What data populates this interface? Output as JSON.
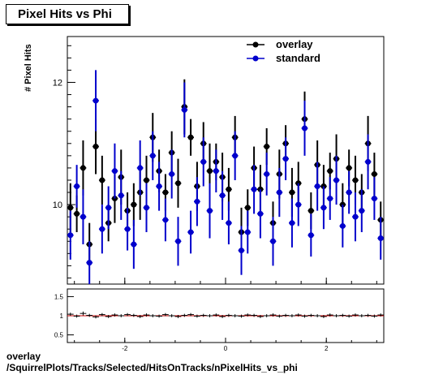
{
  "title": "Pixel Hits vs Phi",
  "footer": {
    "line1": "overlay",
    "line2": "/SquirrelPlots/Tracks/Selected/HitsOnTracks/nPixelHits_vs_phi"
  },
  "chart_data": [
    {
      "type": "scatter",
      "title": "Pixel Hits vs Phi",
      "ylabel": "# Pixel Hits",
      "xlabel": "",
      "xlim": [
        -3.14,
        3.14
      ],
      "ylim": [
        8.7,
        12.75
      ],
      "yticks": [
        10,
        12
      ],
      "xticks": [
        -2,
        0,
        2
      ],
      "legend": {
        "position": "top-right",
        "entries": [
          "overlay",
          "standard"
        ]
      },
      "colors": {
        "overlay": "#000000",
        "standard": "#0000cc"
      },
      "series": [
        {
          "name": "overlay",
          "x": [
            -3.079,
            -2.953,
            -2.827,
            -2.702,
            -2.576,
            -2.45,
            -2.324,
            -2.199,
            -2.073,
            -1.947,
            -1.822,
            -1.696,
            -1.57,
            -1.445,
            -1.319,
            -1.193,
            -1.068,
            -0.942,
            -0.816,
            -0.691,
            -0.565,
            -0.439,
            -0.314,
            -0.188,
            -0.063,
            0.063,
            0.188,
            0.314,
            0.439,
            0.565,
            0.691,
            0.816,
            0.942,
            1.068,
            1.193,
            1.319,
            1.445,
            1.57,
            1.696,
            1.822,
            1.947,
            2.073,
            2.199,
            2.324,
            2.45,
            2.576,
            2.702,
            2.827,
            2.953,
            3.079
          ],
          "y": [
            9.95,
            9.85,
            10.6,
            9.35,
            10.95,
            10.4,
            9.7,
            10.1,
            10.45,
            9.9,
            10.0,
            10.2,
            10.4,
            11.1,
            10.55,
            10.2,
            10.85,
            10.35,
            11.6,
            11.1,
            10.3,
            11.0,
            10.55,
            10.7,
            10.45,
            10.25,
            11.1,
            9.55,
            9.95,
            10.6,
            10.25,
            10.95,
            9.7,
            10.5,
            11.0,
            10.2,
            10.35,
            11.4,
            9.9,
            10.65,
            10.3,
            10.55,
            10.75,
            10.0,
            10.6,
            10.4,
            10.2,
            11.0,
            10.5,
            9.75
          ],
          "yerr": [
            0.4,
            0.3,
            0.45,
            0.35,
            0.45,
            0.4,
            0.3,
            0.4,
            0.45,
            0.3,
            0.35,
            0.45,
            0.4,
            0.4,
            0.35,
            0.3,
            0.35,
            0.4,
            0.45,
            0.3,
            0.4,
            0.35,
            0.45,
            0.3,
            0.4,
            0.35,
            0.35,
            0.4,
            0.3,
            0.35,
            0.4,
            0.3,
            0.35,
            0.4,
            0.3,
            0.4,
            0.35,
            0.45,
            0.3,
            0.4,
            0.35,
            0.3,
            0.4,
            0.35,
            0.3,
            0.4,
            0.3,
            0.45,
            0.35,
            0.3
          ]
        },
        {
          "name": "standard",
          "x": [
            -3.079,
            -2.953,
            -2.827,
            -2.702,
            -2.576,
            -2.45,
            -2.324,
            -2.199,
            -2.073,
            -1.947,
            -1.822,
            -1.696,
            -1.57,
            -1.445,
            -1.319,
            -1.193,
            -1.068,
            -0.942,
            -0.816,
            -0.691,
            -0.565,
            -0.439,
            -0.314,
            -0.188,
            -0.063,
            0.063,
            0.188,
            0.314,
            0.439,
            0.565,
            0.691,
            0.816,
            0.942,
            1.068,
            1.193,
            1.319,
            1.445,
            1.57,
            1.696,
            1.822,
            1.947,
            2.073,
            2.199,
            2.324,
            2.45,
            2.576,
            2.702,
            2.827,
            2.953,
            3.079
          ],
          "y": [
            9.5,
            10.3,
            9.8,
            9.05,
            11.7,
            9.6,
            9.95,
            10.55,
            10.15,
            9.6,
            9.35,
            10.6,
            9.95,
            10.8,
            10.3,
            9.75,
            10.5,
            9.4,
            11.55,
            9.55,
            10.05,
            10.7,
            9.9,
            10.55,
            10.15,
            9.7,
            10.8,
            9.25,
            9.55,
            10.25,
            9.85,
            10.5,
            9.4,
            10.2,
            10.75,
            9.7,
            10.0,
            11.25,
            9.5,
            10.3,
            9.95,
            10.1,
            10.4,
            9.65,
            10.2,
            9.8,
            9.9,
            10.7,
            10.1,
            9.45
          ],
          "yerr": [
            0.4,
            0.35,
            0.45,
            0.35,
            0.5,
            0.4,
            0.35,
            0.45,
            0.4,
            0.35,
            0.4,
            0.45,
            0.4,
            0.4,
            0.4,
            0.35,
            0.4,
            0.4,
            0.45,
            0.35,
            0.4,
            0.4,
            0.45,
            0.35,
            0.4,
            0.35,
            0.4,
            0.4,
            0.35,
            0.4,
            0.4,
            0.35,
            0.4,
            0.4,
            0.35,
            0.4,
            0.35,
            0.45,
            0.35,
            0.4,
            0.35,
            0.35,
            0.4,
            0.35,
            0.35,
            0.4,
            0.35,
            0.45,
            0.35,
            0.35
          ]
        }
      ]
    },
    {
      "type": "scatter",
      "title": "",
      "xlabel": "",
      "ylabel": "",
      "xlim": [
        -3.14,
        3.14
      ],
      "ylim": [
        0.3,
        1.7
      ],
      "yticks": [
        0.5,
        1,
        1.5
      ],
      "xticks": [
        -2,
        0,
        2
      ],
      "reference_line": 1,
      "series": [
        {
          "name": "",
          "x": [
            -3.079,
            -2.953,
            -2.827,
            -2.702,
            -2.576,
            -2.45,
            -2.324,
            -2.199,
            -2.073,
            -1.947,
            -1.822,
            -1.696,
            -1.57,
            -1.445,
            -1.319,
            -1.193,
            -1.068,
            -0.942,
            -0.816,
            -0.691,
            -0.565,
            -0.439,
            -0.314,
            -0.188,
            -0.063,
            0.063,
            0.188,
            0.314,
            0.439,
            0.565,
            0.691,
            0.816,
            0.942,
            1.068,
            1.193,
            1.319,
            1.445,
            1.57,
            1.696,
            1.822,
            1.947,
            2.073,
            2.199,
            2.324,
            2.45,
            2.576,
            2.702,
            2.827,
            2.953,
            3.079
          ],
          "y": [
            1.04,
            0.99,
            1.06,
            1.01,
            0.97,
            1.03,
            0.98,
            1.02,
            1.0,
            1.03,
            1.01,
            0.98,
            1.02,
            1.0,
            0.99,
            1.03,
            1.0,
            0.98,
            1.01,
            1.03,
            0.99,
            1.01,
            1.0,
            1.02,
            0.98,
            1.01,
            1.0,
            0.99,
            1.02,
            1.01,
            0.98,
            1.0,
            1.02,
            0.99,
            1.01,
            1.0,
            1.02,
            0.99,
            1.01,
            1.0,
            0.98,
            1.02,
            1.0,
            1.01,
            0.99,
            1.02,
            1.0,
            1.01,
            0.99,
            1.02
          ],
          "yerr": [
            0.04,
            0.04,
            0.05,
            0.04,
            0.04,
            0.04,
            0.04,
            0.04,
            0.04,
            0.04,
            0.04,
            0.04,
            0.04,
            0.04,
            0.04,
            0.04,
            0.04,
            0.04,
            0.04,
            0.04,
            0.04,
            0.04,
            0.04,
            0.04,
            0.04,
            0.04,
            0.04,
            0.04,
            0.04,
            0.04,
            0.04,
            0.04,
            0.04,
            0.04,
            0.04,
            0.04,
            0.04,
            0.04,
            0.04,
            0.04,
            0.04,
            0.04,
            0.04,
            0.04,
            0.04,
            0.04,
            0.04,
            0.04,
            0.04,
            0.04
          ]
        }
      ]
    }
  ]
}
